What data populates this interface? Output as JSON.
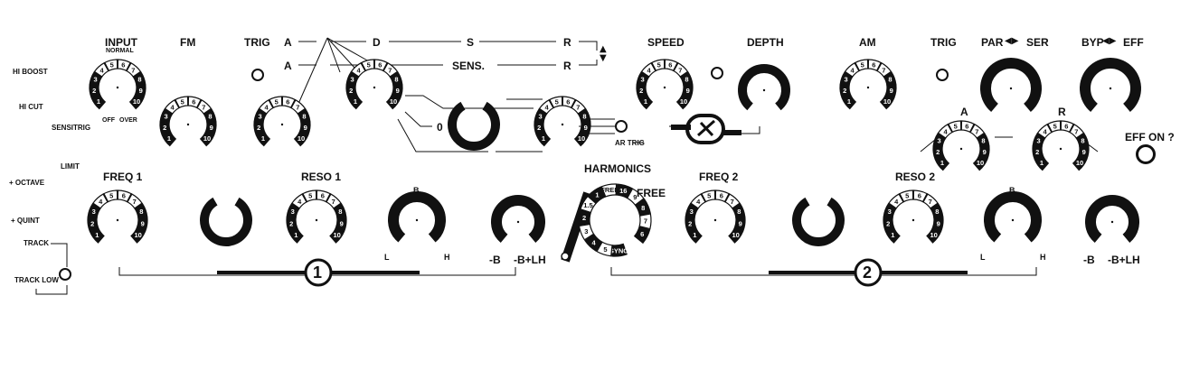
{
  "colors": {
    "ink": "#111111",
    "paper": "#ffffff"
  },
  "labels": {
    "input": "INPUT",
    "normal": "NORMAL",
    "hi_boost": "HI BOOST",
    "hi_cut": "HI CUT",
    "sensitrig": "SENSITRIG",
    "off": "OFF",
    "over": "OVER",
    "fm": "FM",
    "trig": "TRIG",
    "env_a": "A",
    "env_d": "D",
    "env_s": "S",
    "env_r": "R",
    "env2_a": "A",
    "sens": "SENS.",
    "env2_r": "R",
    "zero": "0",
    "plus": "+",
    "minus": "-",
    "ar_trig": "AR TRIG",
    "speed": "SPEED",
    "depth": "DEPTH",
    "am": "AM",
    "trig2": "TRIG",
    "par": "PAR",
    "ser": "SER",
    "byp": "BYP",
    "eff": "EFF",
    "eff_a": "A",
    "eff_r": "R",
    "eff_on": "EFF ON ?",
    "limit": "LIMIT",
    "plus_octave": "+ OCTAVE",
    "plus_quint": "+ QUINT",
    "track": "TRACK",
    "track_low": "TRACK LOW",
    "freq1": "FREQ 1",
    "reso1": "RESO 1",
    "harmonics": "HARMONICS",
    "free": "FREE",
    "sync": "SYNC",
    "freq2": "FREQ 2",
    "reso2": "RESO 2",
    "b_mark": "B",
    "l_mark": "L",
    "h_mark": "H",
    "minus_b": "-B",
    "minus_b_plus_lh": "-B+LH",
    "section1": "1",
    "section2": "2"
  },
  "knob_scale": [
    "1",
    "2",
    "3",
    "4",
    "5",
    "6",
    "7",
    "8",
    "9",
    "10"
  ],
  "harmonics_scale": [
    "SYNC",
    "5",
    "4",
    "3",
    "2",
    "1.5",
    "1",
    "FREE",
    "16",
    "9",
    "8",
    "7",
    "6"
  ],
  "controls": {
    "input_knob": "INPUT",
    "fm_knob": "FM",
    "trig_knob": "TRIG",
    "env_knob": "A D S R",
    "env2_knob": "A SENS. R",
    "speed_knob": "SPEED",
    "depth_knob": "DEPTH",
    "am_knob": "AM",
    "par_ser_knob": "PAR SER",
    "byp_eff_knob": "BYP EFF",
    "freq1_knob": "FREQ 1",
    "reso1_knob": "RESO 1",
    "freq2_knob": "FREQ 2",
    "reso2_knob": "RESO 2"
  }
}
